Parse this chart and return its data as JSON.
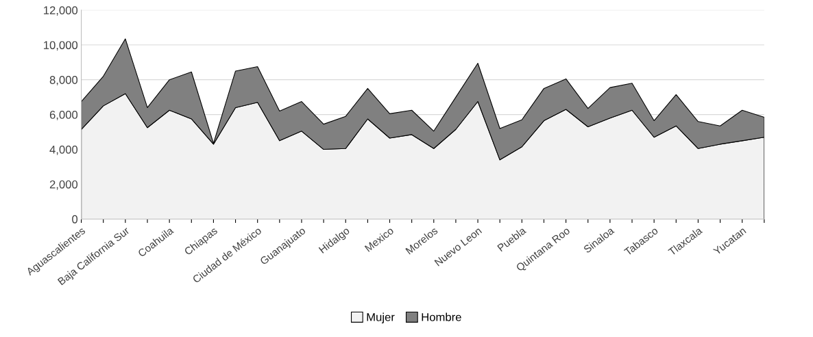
{
  "chart_data": {
    "type": "area",
    "stacked": true,
    "categories": [
      "Aguascalientes",
      null,
      "Baja California Sur",
      null,
      "Coahuila",
      null,
      "Chiapas",
      null,
      "Ciudad de México",
      null,
      "Guanajuato",
      null,
      "Hidalgo",
      null,
      "Mexico",
      null,
      "Morelos",
      null,
      "Nuevo Leon",
      null,
      "Puebla",
      null,
      "Quintana Roo",
      null,
      "Sinaloa",
      null,
      "Tabasco",
      null,
      "Tlaxcala",
      null,
      "Yucatan",
      null
    ],
    "series": [
      {
        "name": "Mujer",
        "color": "#f2f2f2",
        "values": [
          5150,
          6500,
          7200,
          5250,
          6250,
          5750,
          4300,
          6400,
          6700,
          4500,
          5050,
          4000,
          4050,
          5750,
          4650,
          4850,
          4050,
          5150,
          6750,
          3400,
          4150,
          5650,
          6300,
          5300,
          5800,
          6250,
          4700,
          5350,
          4050,
          4300,
          4500,
          4700
        ]
      },
      {
        "name": "Hombre",
        "color": "#808080",
        "values": [
          1600,
          1700,
          3150,
          1150,
          1750,
          2700,
          50,
          2100,
          2050,
          1700,
          1700,
          1450,
          1850,
          1750,
          1400,
          1400,
          1000,
          1850,
          2200,
          1800,
          1550,
          1850,
          1750,
          1050,
          1750,
          1550,
          950,
          1800,
          1550,
          1050,
          1750,
          1150
        ]
      }
    ],
    "ylim": [
      0,
      12000
    ],
    "yticks": [
      {
        "value": 0,
        "label": "0"
      },
      {
        "value": 2000,
        "label": "2,000"
      },
      {
        "value": 4000,
        "label": "4,000"
      },
      {
        "value": 6000,
        "label": "6,000"
      },
      {
        "value": 8000,
        "label": "8,000"
      },
      {
        "value": 10000,
        "label": "10,000"
      },
      {
        "value": 12000,
        "label": "12,000"
      }
    ],
    "grid": "y",
    "legend": "bottom"
  }
}
